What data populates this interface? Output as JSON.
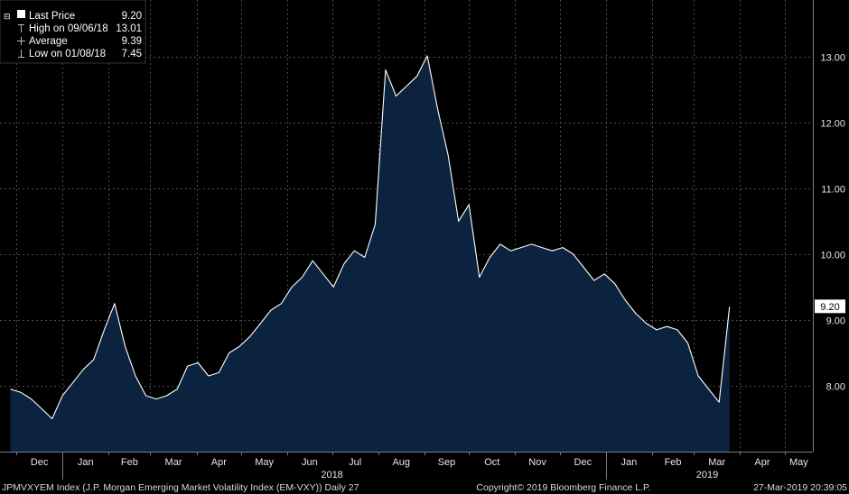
{
  "chart_data": {
    "type": "area",
    "y_ticks": [
      8.0,
      9.0,
      10.0,
      11.0,
      12.0,
      13.0
    ],
    "y_tick_labels": [
      "8.00",
      "9.00",
      "10.00",
      "11.00",
      "12.00",
      "13.00"
    ],
    "ylim": [
      7.0,
      13.75
    ],
    "x_ticks": [
      "Dec",
      "Jan",
      "Feb",
      "Mar",
      "Apr",
      "May",
      "Jun",
      "Jul",
      "Aug",
      "Sep",
      "Oct",
      "Nov",
      "Dec",
      "Jan",
      "Feb",
      "Mar",
      "Apr",
      "May"
    ],
    "year_labels": [
      "2018",
      "2019"
    ],
    "grid": true,
    "legend_position": "top-left",
    "colors": {
      "fill": "#0c2340",
      "line": "#ffffff",
      "grid": "#4d4d4d",
      "background": "#000000"
    },
    "last_value_label": "9.20",
    "series": [
      {
        "x": [
          "2017-11-27",
          "2017-12-04",
          "2017-12-11",
          "2017-12-18",
          "2017-12-25",
          "2018-01-01",
          "2018-01-08",
          "2018-01-15",
          "2018-01-22",
          "2018-01-29",
          "2018-02-05",
          "2018-02-12",
          "2018-02-19",
          "2018-02-26",
          "2018-03-05",
          "2018-03-12",
          "2018-03-19",
          "2018-03-26",
          "2018-04-02",
          "2018-04-09",
          "2018-04-16",
          "2018-04-23",
          "2018-04-30",
          "2018-05-07",
          "2018-05-14",
          "2018-05-21",
          "2018-05-28",
          "2018-06-04",
          "2018-06-11",
          "2018-06-18",
          "2018-06-25",
          "2018-07-02",
          "2018-07-09",
          "2018-07-16",
          "2018-07-23",
          "2018-07-30",
          "2018-08-06",
          "2018-08-13",
          "2018-08-20",
          "2018-08-27",
          "2018-09-03",
          "2018-09-10",
          "2018-09-17",
          "2018-09-24",
          "2018-10-01",
          "2018-10-08",
          "2018-10-15",
          "2018-10-22",
          "2018-10-29",
          "2018-11-05",
          "2018-11-12",
          "2018-11-19",
          "2018-11-26",
          "2018-12-03",
          "2018-12-10",
          "2018-12-17",
          "2018-12-24",
          "2018-12-31",
          "2019-01-07",
          "2019-01-14",
          "2019-01-21",
          "2019-01-28",
          "2019-02-04",
          "2019-02-11",
          "2019-02-18",
          "2019-02-25",
          "2019-03-04",
          "2019-03-11",
          "2019-03-18",
          "2019-03-25"
        ],
        "values": [
          7.95,
          7.9,
          7.8,
          7.65,
          7.5,
          7.85,
          8.05,
          8.25,
          8.4,
          8.85,
          9.25,
          8.6,
          8.15,
          7.85,
          7.8,
          7.85,
          7.95,
          8.3,
          8.35,
          8.15,
          8.2,
          8.5,
          8.6,
          8.75,
          8.95,
          9.15,
          9.25,
          9.5,
          9.65,
          9.9,
          9.7,
          9.5,
          9.85,
          10.05,
          9.95,
          10.45,
          12.8,
          12.4,
          12.55,
          12.7,
          13.01,
          12.2,
          11.5,
          10.5,
          10.75,
          9.65,
          9.95,
          10.15,
          10.05,
          10.1,
          10.15,
          10.1,
          10.05,
          10.1,
          10.0,
          9.8,
          9.6,
          9.7,
          9.55,
          9.3,
          9.1,
          8.95,
          8.85,
          8.9,
          8.85,
          8.65,
          8.15,
          7.95,
          7.75,
          9.2
        ]
      }
    ]
  },
  "legend": {
    "last_price_label": "Last Price",
    "last_price_value": "9.20",
    "high_label": "High on 09/06/18",
    "high_value": "13.01",
    "average_label": "Average",
    "average_value": "9.39",
    "low_label": "Low on 01/08/18",
    "low_value": "7.45"
  },
  "footer": {
    "left": "JPMVXYEM Index (J.P. Morgan Emerging Market Volatility Index (EM-VXY)) Daily 27",
    "center": "Copyright© 2019 Bloomberg Finance L.P.",
    "right": "27-Mar-2019 20:39:05"
  }
}
